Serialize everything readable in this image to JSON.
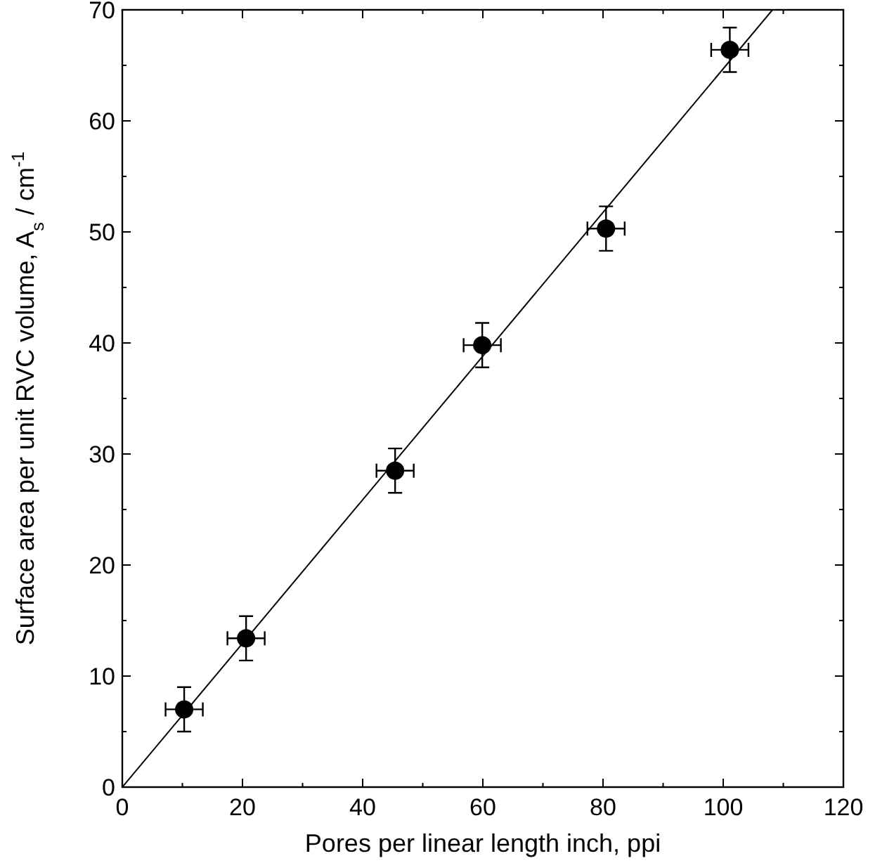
{
  "chart_data": {
    "type": "scatter",
    "xlabel": "Pores per linear length inch, ppi",
    "ylabel": "Surface area per unit RVC volume, A$_{s}$ / cm$^{-1}$",
    "xlim": [
      0,
      120
    ],
    "xticks": [
      0,
      20,
      40,
      60,
      80,
      100,
      120
    ],
    "ylim": [
      0,
      70
    ],
    "yticks": [
      0,
      10,
      20,
      30,
      40,
      50,
      60,
      70
    ],
    "grid": false,
    "series": [
      {
        "color": "#000000",
        "marker": "circle",
        "x": [
          10.3,
          20.6,
          45.4,
          59.9,
          80.5,
          101.1
        ],
        "values": [
          7.0,
          13.4,
          28.5,
          39.8,
          50.3,
          66.4
        ],
        "errors": [
          2,
          2,
          2,
          2,
          2,
          2
        ],
        "xerrors": [
          3.1,
          3.1,
          3.1,
          3.1,
          3.1,
          3.1
        ]
      },
      {
        "type": "line",
        "color": "#000000",
        "line_style": "solid",
        "x": [
          0,
          108.2
        ],
        "values": [
          0,
          70
        ]
      }
    ]
  }
}
